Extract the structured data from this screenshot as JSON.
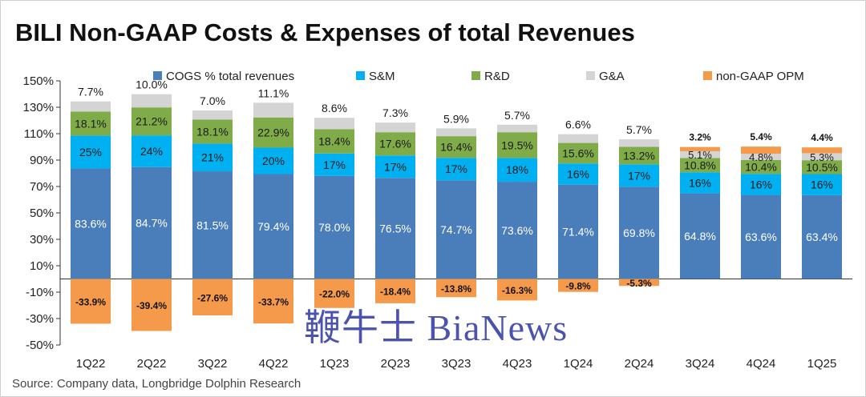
{
  "title": "BILI Non-GAAP Costs & Expenses of total Revenues",
  "source": "Source: Company data, Longbridge Dolphin Research",
  "watermark": "鞭牛士 BiaNews",
  "colors": {
    "cogs": "#4a7ebb",
    "sm": "#00b0f0",
    "rd": "#7fac48",
    "ga": "#d4d4d4",
    "opm": "#f59a4a"
  },
  "chart_data": {
    "type": "bar",
    "stacked": true,
    "categories": [
      "1Q22",
      "2Q22",
      "3Q22",
      "4Q22",
      "1Q23",
      "2Q23",
      "3Q23",
      "4Q23",
      "1Q24",
      "2Q24",
      "3Q24",
      "4Q24",
      "1Q25"
    ],
    "ylim": [
      -50,
      150
    ],
    "yticks": [
      150,
      130,
      110,
      90,
      70,
      50,
      30,
      10,
      -10,
      -30,
      -50
    ],
    "ytick_labels": [
      "150%",
      "130%",
      "110%",
      "90%",
      "70%",
      "50%",
      "30%",
      "10%",
      "-10%",
      "-30%",
      "-50%"
    ],
    "legend": [
      "COGS % total revenues",
      "S&M",
      "R&D",
      "G&A",
      "non-GAAP OPM"
    ],
    "series": [
      {
        "name": "COGS % total revenues",
        "key": "cogs",
        "values": [
          83.6,
          84.7,
          81.5,
          79.4,
          78.0,
          76.5,
          74.7,
          73.6,
          71.4,
          69.8,
          64.8,
          63.6,
          63.4
        ],
        "labels": [
          "83.6%",
          "84.7%",
          "81.5%",
          "79.4%",
          "78.0%",
          "76.5%",
          "74.7%",
          "73.6%",
          "71.4%",
          "69.8%",
          "64.8%",
          "63.6%",
          "63.4%"
        ]
      },
      {
        "name": "S&M",
        "key": "sm",
        "values": [
          25,
          24,
          21,
          20,
          17,
          17,
          17,
          18,
          16,
          17,
          16,
          16,
          16
        ],
        "labels": [
          "25%",
          "24%",
          "21%",
          "20%",
          "17%",
          "17%",
          "17%",
          "18%",
          "16%",
          "17%",
          "16%",
          "16%",
          "16%"
        ]
      },
      {
        "name": "R&D",
        "key": "rd",
        "values": [
          18.1,
          21.2,
          18.1,
          22.9,
          18.4,
          17.6,
          16.4,
          19.5,
          15.6,
          13.2,
          10.8,
          10.4,
          10.5
        ],
        "labels": [
          "18.1%",
          "21.2%",
          "18.1%",
          "22.9%",
          "18.4%",
          "17.6%",
          "16.4%",
          "19.5%",
          "15.6%",
          "13.2%",
          "10.8%",
          "10.4%",
          "10.5%"
        ]
      },
      {
        "name": "G&A",
        "key": "ga",
        "values": [
          7.7,
          10.0,
          7.0,
          11.1,
          8.6,
          7.3,
          5.9,
          5.7,
          6.6,
          5.7,
          5.1,
          4.8,
          5.3
        ],
        "labels": [
          "7.7%",
          "10.0%",
          "7.0%",
          "11.1%",
          "8.6%",
          "7.3%",
          "5.9%",
          "5.7%",
          "6.6%",
          "5.7%",
          "5.1%",
          "4.8%",
          "5.3%"
        ]
      },
      {
        "name": "non-GAAP OPM",
        "key": "opm",
        "values": [
          -33.9,
          -39.4,
          -27.6,
          -33.7,
          -22.0,
          -18.4,
          -13.8,
          -16.3,
          -9.8,
          -5.3,
          3.2,
          5.4,
          4.4
        ],
        "labels": [
          "-33.9%",
          "-39.4%",
          "-27.6%",
          "-33.7%",
          "-22.0%",
          "-18.4%",
          "-13.8%",
          "-16.3%",
          "-9.8%",
          "-5.3%",
          "3.2%",
          "5.4%",
          "4.4%"
        ]
      }
    ]
  }
}
